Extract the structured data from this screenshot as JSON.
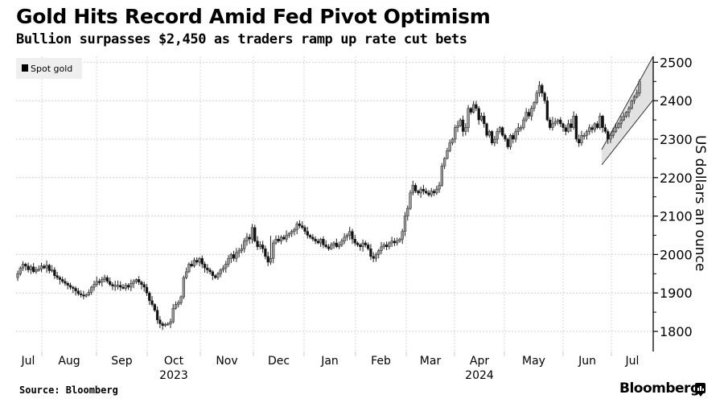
{
  "header": {
    "title": "Gold Hits Record Amid Fed Pivot Optimism",
    "subtitle": "Bullion surpasses $2,450 as traders ramp up rate cut bets"
  },
  "footer": {
    "source": "Source: Bloomberg",
    "brand": "Bloomberg"
  },
  "chart_data": {
    "type": "candlestick",
    "title": "Gold Hits Record Amid Fed Pivot Optimism",
    "subtitle": "Bullion surpasses $2,450 as traders ramp up rate cut bets",
    "xlabel": "",
    "ylabel": "US dollars an ounce",
    "ylim": [
      1750,
      2520
    ],
    "yticks": [
      1800,
      1900,
      2000,
      2100,
      2200,
      2300,
      2400,
      2500
    ],
    "grid": true,
    "legend": {
      "entries": [
        "Spot gold"
      ],
      "placement": "top-left"
    },
    "x_month_labels": [
      "Jul",
      "Aug",
      "Sep",
      "Oct",
      "Nov",
      "Dec",
      "Jan",
      "Feb",
      "Mar",
      "Apr",
      "May",
      "Jun",
      "Jul"
    ],
    "x_year_labels": [
      {
        "label": "2023",
        "under_month": "Oct"
      },
      {
        "label": "2024",
        "under_month": "Apr"
      }
    ],
    "series": [
      {
        "name": "Spot gold",
        "note": "Approximate daily closes read from chart, Jul 2023 - mid Jul 2024",
        "closes": [
          1950,
          1965,
          1975,
          1970,
          1960,
          1968,
          1955,
          1960,
          1962,
          1970,
          1965,
          1972,
          1958,
          1960,
          1945,
          1940,
          1935,
          1930,
          1925,
          1920,
          1915,
          1912,
          1905,
          1898,
          1895,
          1893,
          1895,
          1902,
          1915,
          1922,
          1930,
          1928,
          1935,
          1940,
          1930,
          1922,
          1918,
          1920,
          1920,
          1915,
          1912,
          1920,
          1915,
          1925,
          1930,
          1935,
          1928,
          1922,
          1915,
          1900,
          1880,
          1870,
          1855,
          1830,
          1820,
          1815,
          1818,
          1820,
          1825,
          1860,
          1870,
          1875,
          1890,
          1940,
          1955,
          1975,
          1970,
          1985,
          1980,
          1990,
          1975,
          1965,
          1960,
          1955,
          1945,
          1940,
          1950,
          1960,
          1965,
          1975,
          1990,
          2000,
          1990,
          2005,
          2010,
          2015,
          2035,
          2045,
          2040,
          2070,
          2035,
          2020,
          2025,
          2015,
          1995,
          1980,
          1990,
          2030,
          2040,
          2035,
          2045,
          2040,
          2050,
          2055,
          2060,
          2065,
          2080,
          2075,
          2070,
          2060,
          2050,
          2045,
          2040,
          2035,
          2030,
          2040,
          2025,
          2020,
          2015,
          2025,
          2030,
          2020,
          2025,
          2035,
          2045,
          2050,
          2060,
          2040,
          2030,
          2025,
          2020,
          2030,
          2025,
          2015,
          1995,
          1990,
          2000,
          2010,
          2020,
          2025,
          2020,
          2030,
          2035,
          2030,
          2035,
          2040,
          2060,
          2100,
          2120,
          2160,
          2180,
          2165,
          2160,
          2170,
          2165,
          2160,
          2155,
          2165,
          2160,
          2170,
          2180,
          2230,
          2250,
          2270,
          2290,
          2300,
          2330,
          2335,
          2350,
          2320,
          2330,
          2380,
          2370,
          2390,
          2380,
          2350,
          2360,
          2340,
          2310,
          2320,
          2290,
          2300,
          2320,
          2330,
          2310,
          2300,
          2280,
          2310,
          2300,
          2320,
          2330,
          2330,
          2350,
          2370,
          2360,
          2380,
          2395,
          2420,
          2440,
          2420,
          2400,
          2350,
          2330,
          2340,
          2345,
          2350,
          2340,
          2330,
          2320,
          2340,
          2330,
          2360,
          2300,
          2290,
          2310,
          2310,
          2320,
          2330,
          2325,
          2340,
          2330,
          2360,
          2330,
          2320,
          2300,
          2310,
          2320,
          2330,
          2340,
          2350,
          2360,
          2370,
          2380,
          2400,
          2410,
          2420,
          2450
        ]
      }
    ],
    "annotation": {
      "type": "rising-channel",
      "note": "shaded upward-sloping channel over late Jun - Jul 2024"
    }
  }
}
